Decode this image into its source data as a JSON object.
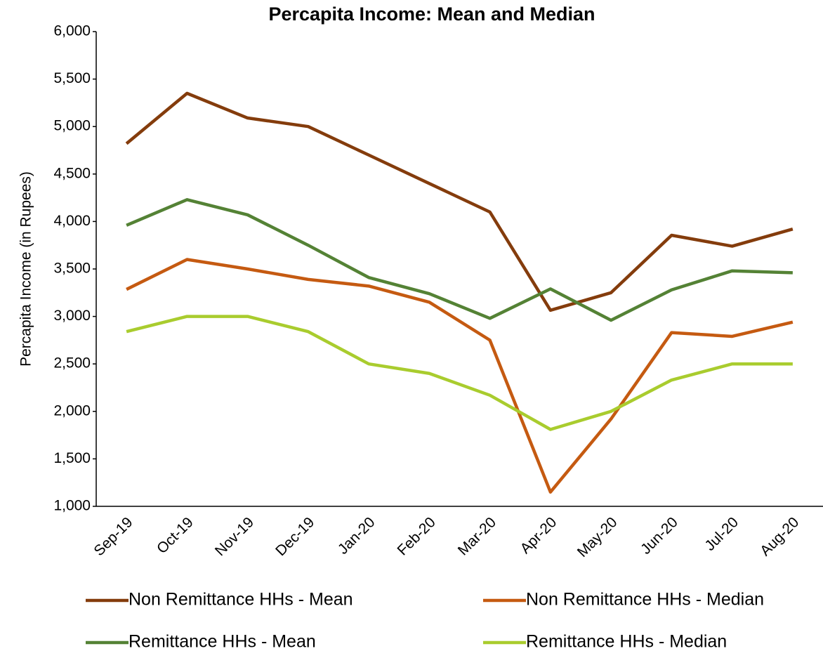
{
  "chart_data": {
    "type": "line",
    "title": "Percapita Income: Mean and Median",
    "y_label": "Percapita Income (in Rupees)",
    "categories": [
      "Sep-19",
      "Oct-19",
      "Nov-19",
      "Dec-19",
      "Jan-20",
      "Feb-20",
      "Mar-20",
      "Apr-20",
      "May-20",
      "Jun-20",
      "Jul-20",
      "Aug-20"
    ],
    "series": [
      {
        "name": "Non Remittance HHs - Mean",
        "color": "#843c0c",
        "values": [
          4820,
          5350,
          5090,
          5000,
          4700,
          4400,
          4100,
          3065,
          3250,
          3855,
          3740,
          3920
        ]
      },
      {
        "name": "Non Remittance HHs - Median",
        "color": "#c55a11",
        "values": [
          3285,
          3600,
          3500,
          3390,
          3320,
          3150,
          2750,
          1150,
          1920,
          2830,
          2790,
          2940
        ]
      },
      {
        "name": "Remittance HHs - Mean",
        "color": "#548235",
        "values": [
          3960,
          4230,
          4070,
          3750,
          3410,
          3240,
          2980,
          3290,
          2960,
          3280,
          3480,
          3460
        ]
      },
      {
        "name": "Remittance HHs - Median",
        "color": "#a9cc2e",
        "values": [
          2840,
          3000,
          3000,
          2840,
          2500,
          2400,
          2170,
          1810,
          2000,
          2330,
          2500,
          2500
        ]
      }
    ],
    "ylim": [
      1000,
      6000
    ],
    "yticks": [
      {
        "value": 1000,
        "label": "1,000"
      },
      {
        "value": 1500,
        "label": "1,500"
      },
      {
        "value": 2000,
        "label": "2,000"
      },
      {
        "value": 2500,
        "label": "2,500"
      },
      {
        "value": 3000,
        "label": "3,000"
      },
      {
        "value": 3500,
        "label": "3,500"
      },
      {
        "value": 4000,
        "label": "4,000"
      },
      {
        "value": 4500,
        "label": "4,500"
      },
      {
        "value": 5000,
        "label": "5,000"
      },
      {
        "value": 5500,
        "label": "5,500"
      },
      {
        "value": 6000,
        "label": "6,000"
      }
    ],
    "grid": false,
    "legend": "bottom"
  }
}
